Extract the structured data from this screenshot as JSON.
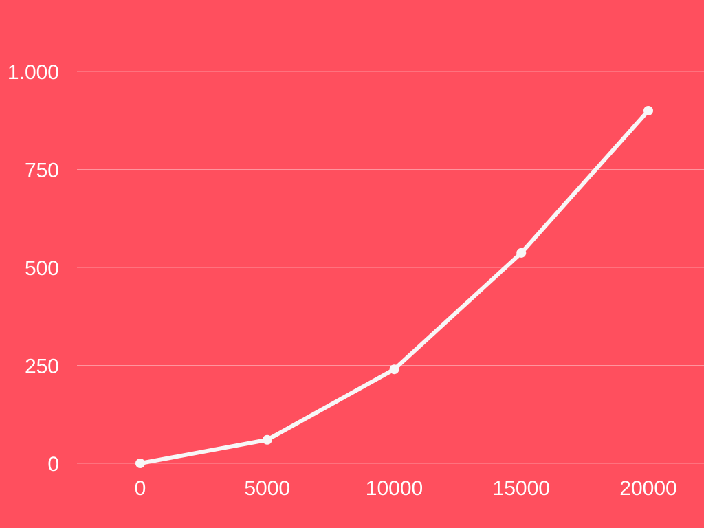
{
  "chart_data": {
    "type": "line",
    "background_color": "#FF4F5E",
    "line_color": "#F7F7F7",
    "grid": true,
    "x": [
      0,
      5000,
      10000,
      15000,
      20000
    ],
    "x_tick_labels": [
      "0",
      "5000",
      "10000",
      "15000",
      "20000"
    ],
    "y_ticks": [
      0,
      250,
      500,
      750,
      1000
    ],
    "y_tick_labels": [
      "0",
      "250",
      "500",
      "750",
      "1.000"
    ],
    "ylim": [
      0,
      1000
    ],
    "series": [
      {
        "values": [
          0,
          60,
          240,
          537,
          900
        ]
      }
    ],
    "title": "",
    "xlabel": "",
    "ylabel": ""
  }
}
